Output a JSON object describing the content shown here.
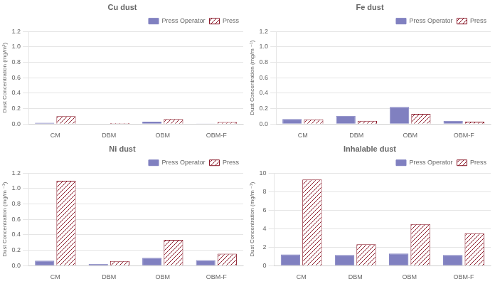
{
  "chart_data": [
    {
      "type": "bar",
      "title": "Cu dust",
      "categories": [
        "CM",
        "DBM",
        "OBM",
        "OBM-F"
      ],
      "series": [
        {
          "name": "Press Operator",
          "color": "#8080c0",
          "values": [
            0.015,
            0.005,
            0.03,
            0.007
          ]
        },
        {
          "name": "Press",
          "color": "#8b1a2a",
          "values": [
            0.1,
            0.012,
            0.065,
            0.025
          ]
        }
      ],
      "y_label": "Dust Concentration (mg/m³)",
      "ylim": [
        0,
        1.2
      ],
      "yticks": [
        {
          "value": 0,
          "label": "0.0"
        },
        0.2,
        0.4,
        0.6,
        0.8,
        {
          "value": 1.0,
          "label": "1.0"
        },
        1.2
      ],
      "grid": true,
      "legend": "upper right"
    },
    {
      "type": "bar",
      "title": "Fe dust",
      "categories": [
        "CM",
        "DBM",
        "OBM",
        "OBM-F"
      ],
      "series": [
        {
          "name": "Press Operator",
          "color": "#8080c0",
          "values": [
            0.065,
            0.105,
            0.22,
            0.04
          ]
        },
        {
          "name": "Press",
          "color": "#8b1a2a",
          "values": [
            0.06,
            0.04,
            0.13,
            0.03
          ]
        }
      ],
      "y_label": "Dust Concentration (mg/m ⁻¹)",
      "ylim": [
        0,
        1.2
      ],
      "yticks": [
        {
          "value": 0,
          "label": "0.0"
        },
        0.2,
        0.4,
        0.6,
        0.8,
        {
          "value": 1.0,
          "label": "1.0"
        },
        1.2
      ],
      "grid": true,
      "legend": "upper right"
    },
    {
      "type": "bar",
      "title": "Ni dust",
      "categories": [
        "CM",
        "DBM",
        "OBM",
        "OBM-F"
      ],
      "series": [
        {
          "name": "Press Operator",
          "color": "#8080c0",
          "values": [
            0.065,
            0.02,
            0.1,
            0.07
          ]
        },
        {
          "name": "Press",
          "color": "#8b1a2a",
          "values": [
            1.1,
            0.06,
            0.335,
            0.155
          ]
        }
      ],
      "y_label": "Dust Concentration (mg/m ⁻¹)",
      "ylim": [
        0,
        1.2
      ],
      "yticks": [
        {
          "value": 0,
          "label": "0.0"
        },
        0.2,
        0.4,
        0.6,
        0.8,
        {
          "value": 1.0,
          "label": "1.0"
        },
        1.2
      ],
      "grid": true,
      "legend": "upper right"
    },
    {
      "type": "bar",
      "title": "Inhalable dust",
      "categories": [
        "CM",
        "DBM",
        "OBM",
        "OBM-F"
      ],
      "series": [
        {
          "name": "Press Operator",
          "color": "#8080c0",
          "values": [
            1.2,
            1.15,
            1.3,
            1.15
          ]
        },
        {
          "name": "Press",
          "color": "#8b1a2a",
          "values": [
            9.3,
            2.3,
            4.5,
            3.5
          ]
        }
      ],
      "y_label": "Dust Concentration (mg/m ⁻¹)",
      "ylim": [
        0,
        10
      ],
      "yticks": [
        0,
        2,
        4,
        6,
        8,
        10
      ],
      "grid": true,
      "legend": "upper right"
    }
  ]
}
